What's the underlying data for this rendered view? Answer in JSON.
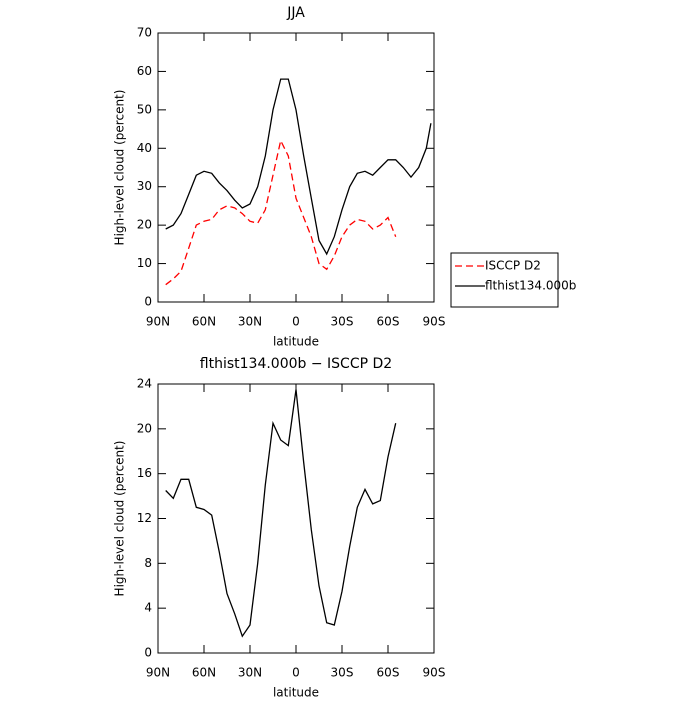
{
  "chart_data": [
    {
      "type": "line",
      "title": "JJA",
      "xlabel": "latitude",
      "ylabel": "High-level cloud (percent)",
      "x": [
        85,
        80,
        75,
        70,
        65,
        60,
        55,
        50,
        45,
        40,
        35,
        30,
        25,
        20,
        15,
        10,
        5,
        0,
        -5,
        -10,
        -15,
        -20,
        -25,
        -30,
        -35,
        -40,
        -45,
        -50,
        -55,
        -60,
        -65,
        -70,
        -75,
        -80,
        -85,
        -88
      ],
      "series": [
        {
          "name": "ISCCP D2",
          "color": "#ff0000",
          "linestyle": "dashed",
          "values": [
            4.5,
            6,
            8,
            14,
            20,
            21,
            21.5,
            24,
            25,
            24.5,
            23,
            21,
            20.5,
            24,
            33,
            42,
            38,
            27,
            22,
            17,
            10,
            8.5,
            12,
            17,
            20,
            21.5,
            21,
            19,
            20,
            22,
            17,
            null,
            null,
            null,
            null,
            null
          ]
        },
        {
          "name": "flthist134.000b",
          "color": "#000000",
          "linestyle": "solid",
          "values": [
            19,
            20,
            23,
            28,
            33,
            34,
            33.5,
            31,
            29,
            26.5,
            24.5,
            25.5,
            30,
            38,
            50,
            58,
            58,
            50,
            38,
            27,
            16,
            12.5,
            17,
            24,
            30,
            33.5,
            34,
            33,
            35,
            37,
            37,
            35,
            32.5,
            35,
            40,
            46.5
          ]
        }
      ],
      "xlim": [
        90,
        -90
      ],
      "ylim": [
        0,
        70
      ],
      "xticks": [
        {
          "value": 90,
          "label": "90N"
        },
        {
          "value": 60,
          "label": "60N"
        },
        {
          "value": 30,
          "label": "30N"
        },
        0,
        {
          "value": -30,
          "label": "30S"
        },
        {
          "value": -60,
          "label": "60S"
        },
        {
          "value": -90,
          "label": "90S"
        }
      ],
      "yticks": [
        0,
        10,
        20,
        30,
        40,
        50,
        60,
        70
      ],
      "legend": "right"
    },
    {
      "type": "line",
      "title": "flthist134.000b − ISCCP D2",
      "xlabel": "latitude",
      "ylabel": "High-level cloud (percent)",
      "x": [
        85,
        80,
        75,
        70,
        65,
        60,
        55,
        50,
        45,
        40,
        35,
        30,
        25,
        20,
        15,
        10,
        5,
        0,
        -5,
        -10,
        -15,
        -20,
        -25,
        -30,
        -35,
        -40,
        -45,
        -50,
        -55,
        -60,
        -65
      ],
      "series": [
        {
          "color": "#000000",
          "linestyle": "solid",
          "values": [
            14.5,
            13.8,
            15.5,
            15.5,
            13,
            12.8,
            12.3,
            9,
            5.3,
            3.5,
            1.5,
            2.5,
            8,
            15,
            20.5,
            19,
            18.5,
            23.5,
            17,
            11,
            6,
            2.7,
            2.5,
            5.5,
            9.5,
            13,
            14.6,
            13.3,
            13.6,
            17.5,
            20.5
          ]
        }
      ],
      "xlim": [
        90,
        -90
      ],
      "ylim": [
        0,
        24
      ],
      "xticks": [
        {
          "value": 90,
          "label": "90N"
        },
        {
          "value": 60,
          "label": "60N"
        },
        {
          "value": 30,
          "label": "30N"
        },
        0,
        {
          "value": -30,
          "label": "30S"
        },
        {
          "value": -60,
          "label": "60S"
        },
        {
          "value": -90,
          "label": "90S"
        }
      ],
      "yticks": [
        0,
        4,
        8,
        12,
        16,
        20,
        24
      ]
    }
  ]
}
